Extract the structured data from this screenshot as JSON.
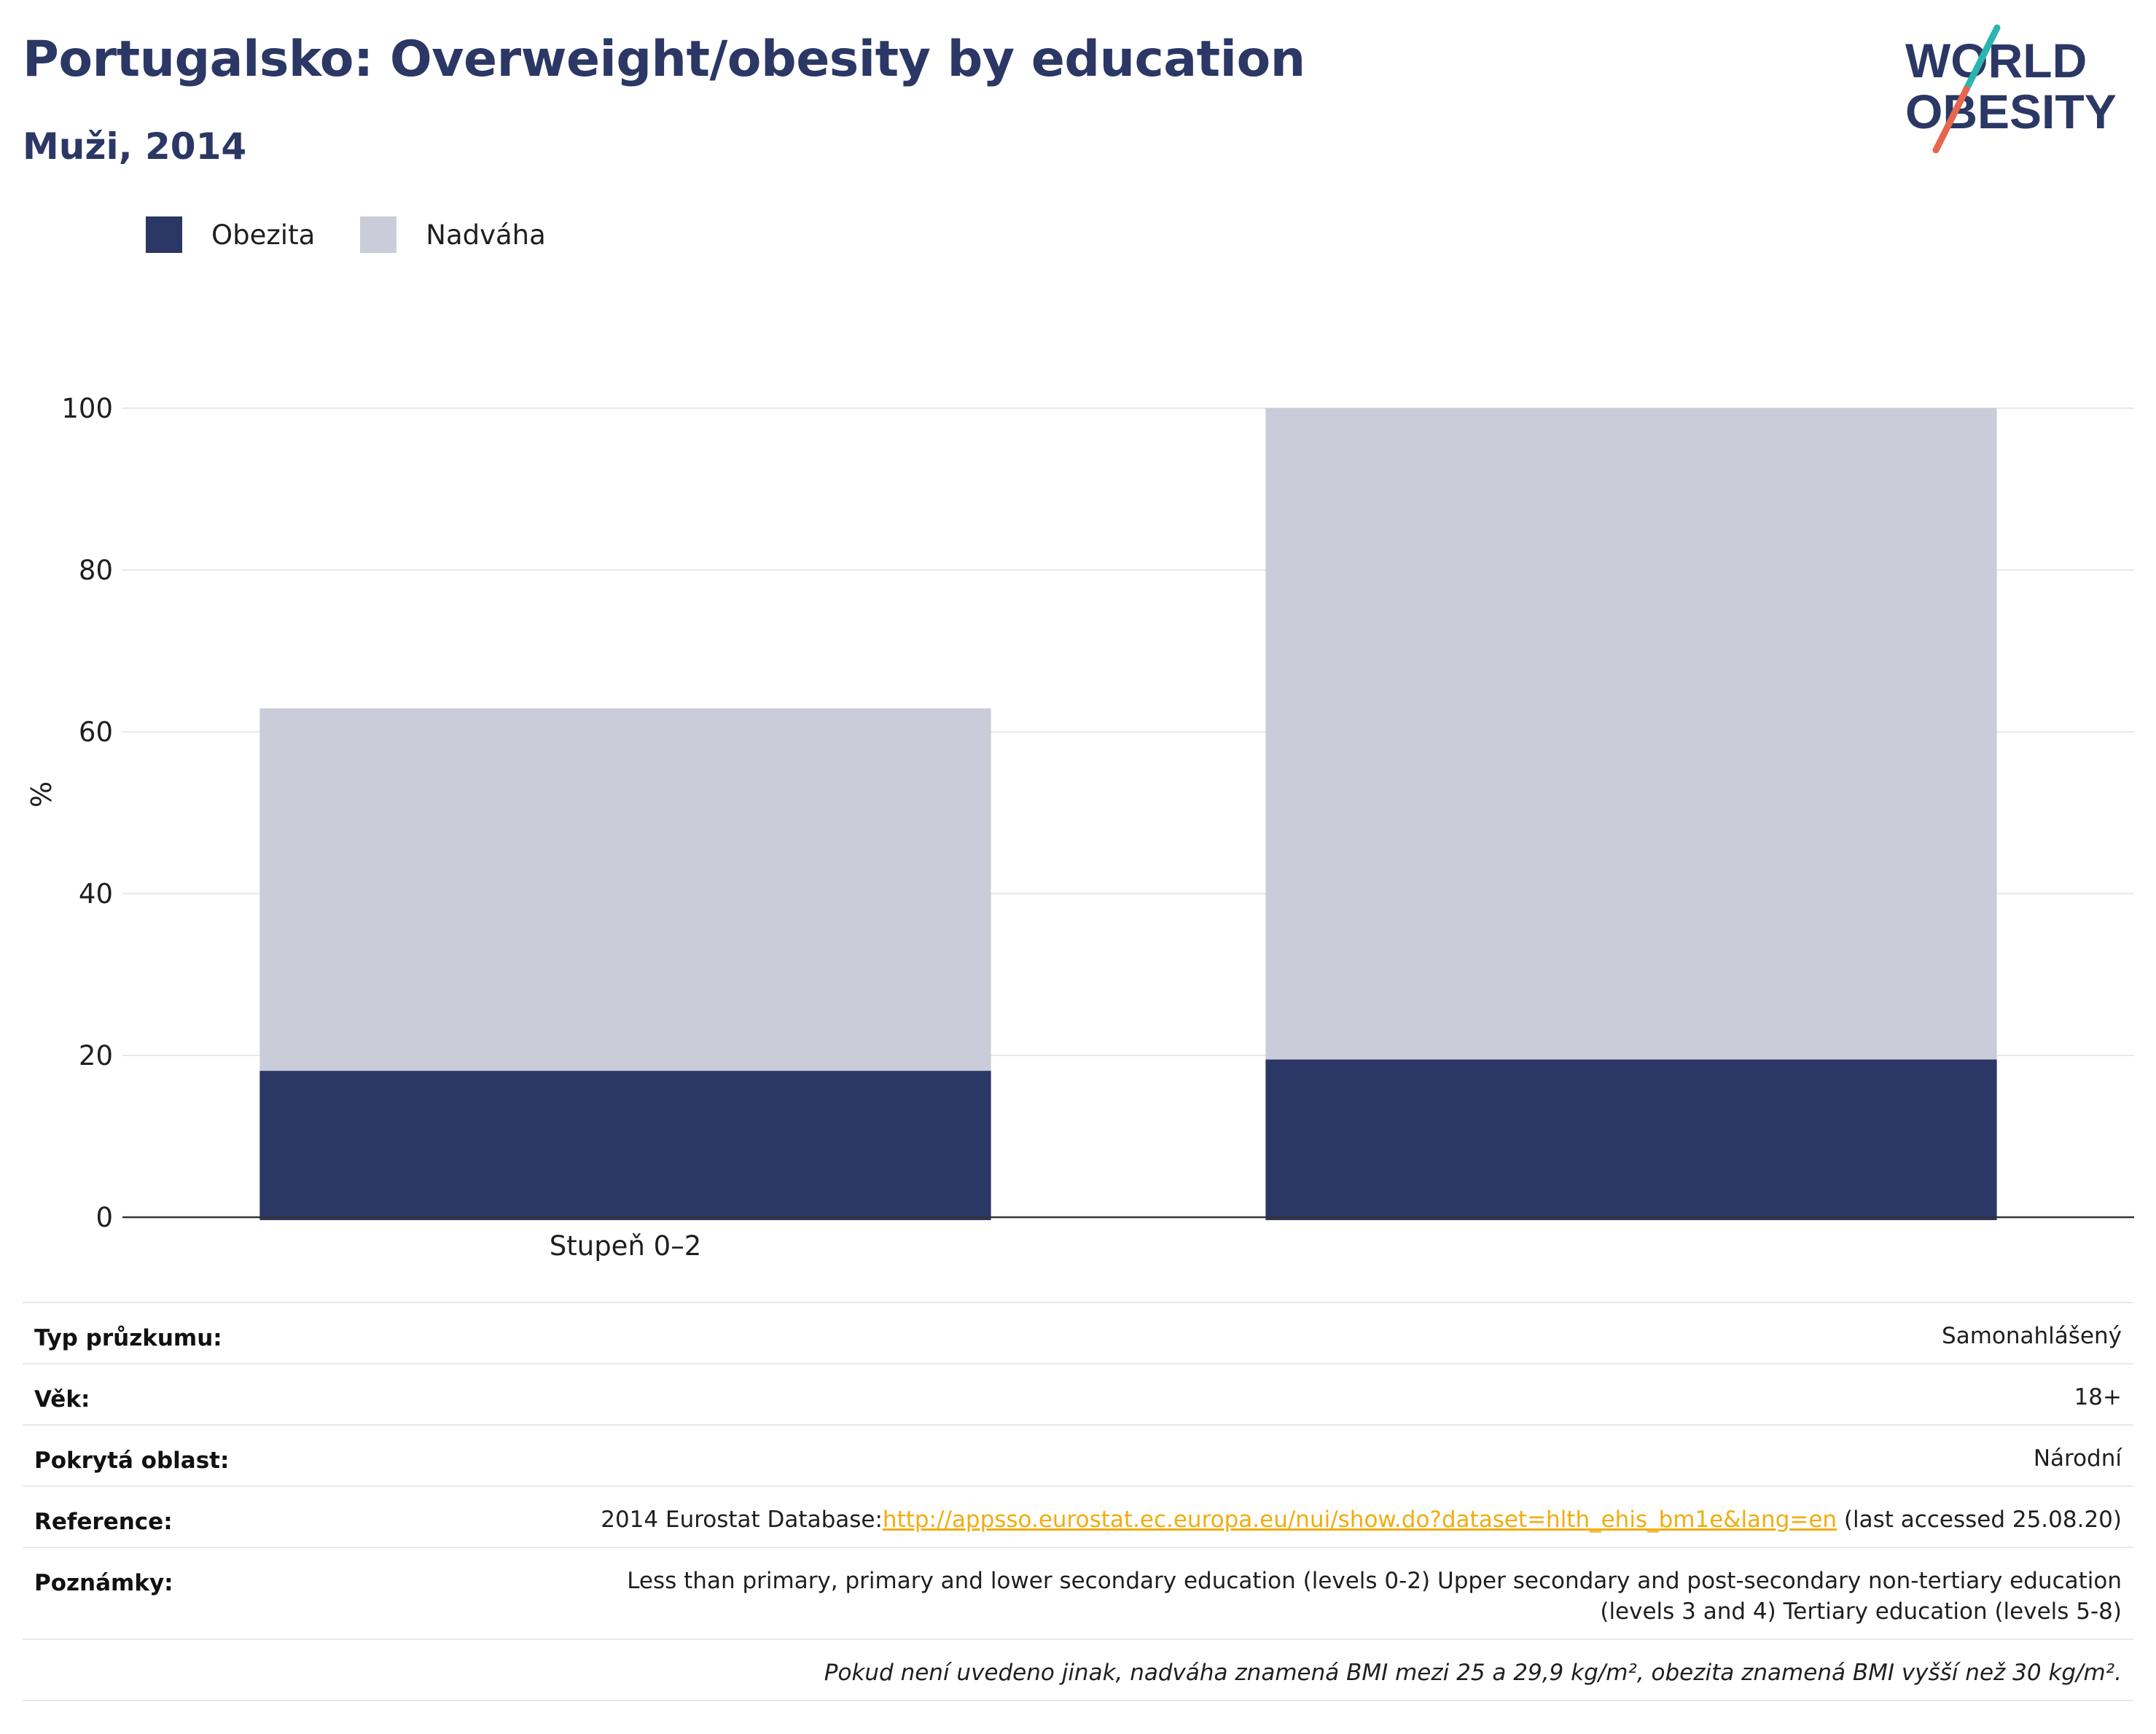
{
  "header": {
    "title": "Portugalsko: Overweight/obesity by education",
    "subtitle": "Muži, 2014"
  },
  "logo": {
    "line1": "WORLD",
    "line2": "OBESITY",
    "colors": {
      "text": "#2b3764",
      "slash_top": "#2bb5b0",
      "slash_bottom": "#e5674e"
    }
  },
  "legend": [
    {
      "label": "Obezita",
      "color": "#2b3764"
    },
    {
      "label": "Nadváha",
      "color": "#cacdd9"
    }
  ],
  "chart_data": {
    "type": "bar",
    "stacked": true,
    "categories": [
      "Stupeň 0–2",
      ""
    ],
    "series": [
      {
        "name": "Obezita",
        "values": [
          18.1,
          19.5
        ],
        "color": "#2b3764"
      },
      {
        "name": "Nadváha",
        "values": [
          44.8,
          80.5
        ],
        "color": "#cacdd9"
      }
    ],
    "xlabel": "",
    "ylabel": "%",
    "ylim": [
      0,
      100
    ],
    "yticks": [
      0,
      20,
      40,
      60,
      80,
      100
    ],
    "grid": true,
    "legend_position": "top-left"
  },
  "info": {
    "survey_type": {
      "label": "Typ průzkumu:",
      "value": "Samonahlášený"
    },
    "age": {
      "label": "Věk:",
      "value": "18+"
    },
    "coverage": {
      "label": "Pokrytá oblast:",
      "value": "Národní"
    },
    "reference": {
      "label": "Reference:",
      "prefix": "2014 Eurostat Database:",
      "link": "http://appsso.eurostat.ec.europa.eu/nui/show.do?dataset=hlth_ehis_bm1e&lang=en",
      "suffix": " (last accessed 25.08.20)"
    },
    "notes": {
      "label": "Poznámky:",
      "value": "Less than primary, primary and lower secondary education (levels 0-2) Upper secondary and post-secondary non-tertiary education (levels 3 and 4) Tertiary education (levels 5-8)"
    },
    "footnote": "Pokud není uvedeno jinak, nadváha znamená BMI mezi 25 a 29,9 kg/m², obezita znamená BMI vyšší než 30 kg/m²."
  }
}
